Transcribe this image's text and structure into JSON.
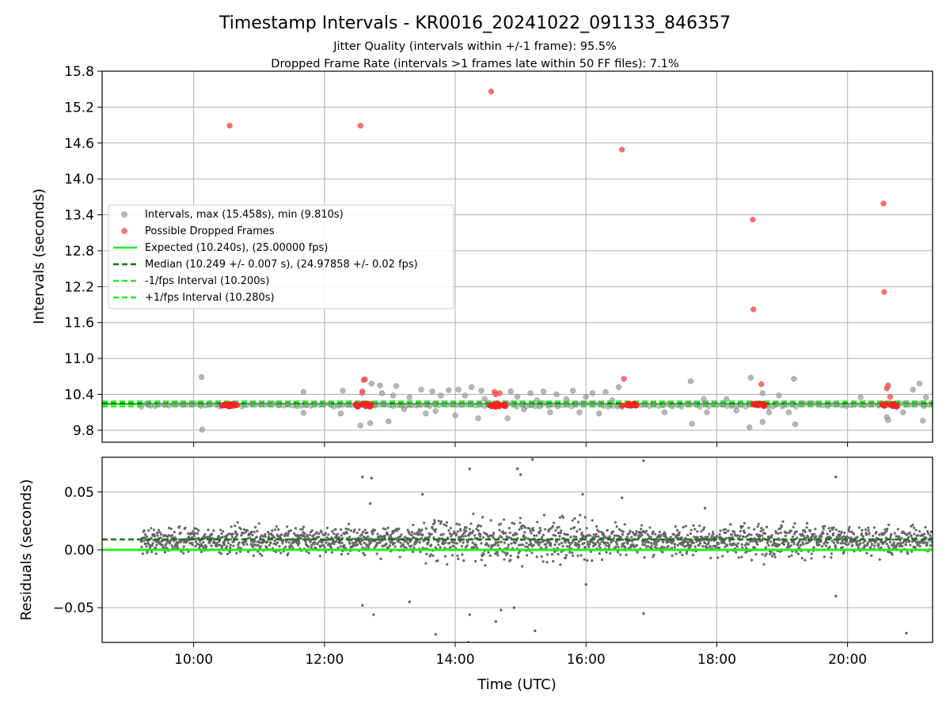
{
  "chart_data": [
    {
      "type": "scatter",
      "panel": "intervals",
      "title": "Timestamp Intervals - KR0016_20241022_091133_846357",
      "subtitle_lines": [
        "Jitter Quality (intervals within +/-1 frame): 95.5%",
        "Dropped Frame Rate (intervals >1 frames late within 50 FF files): 7.1%"
      ],
      "ylabel": "Intervals (seconds)",
      "xlim": [
        8.6,
        21.3
      ],
      "ylim": [
        9.6,
        15.8
      ],
      "yticks": [
        9.8,
        10.4,
        11.0,
        11.6,
        12.2,
        12.8,
        13.4,
        14.0,
        14.6,
        15.2,
        15.8
      ],
      "ytick_labels": [
        "9.8",
        "10.4",
        "11.0",
        "11.6",
        "12.2",
        "12.8",
        "13.4",
        "14.0",
        "14.6",
        "15.2",
        "15.8"
      ],
      "grid": true,
      "legend_position": "center-left",
      "legend": [
        {
          "label": "Intervals, max (15.458s), min (9.810s)",
          "style": "marker",
          "color": "#999999"
        },
        {
          "label": "Possible Dropped Frames",
          "style": "marker",
          "color": "#ff5555"
        },
        {
          "label": "Expected (10.240s), (25.00000 fps)",
          "style": "solid",
          "color": "#22ee22"
        },
        {
          "label": "Median (10.249 +/- 0.007 s), (24.97858 +/- 0.02 fps)",
          "style": "dashed",
          "color": "#117711"
        },
        {
          "label": "-1/fps Interval (10.200s)",
          "style": "dashed",
          "color": "#22ee22"
        },
        {
          "label": "+1/fps Interval (10.280s)",
          "style": "dashed",
          "color": "#22ee22"
        }
      ],
      "series": [
        {
          "name": "Intervals, max (15.458s), min (9.810s)",
          "color": "#999999",
          "x": [
            10.12,
            10.13,
            11.68,
            11.68,
            12.28,
            12.25,
            12.55,
            12.58,
            12.72,
            12.7,
            12.85,
            12.88,
            12.98,
            13.05,
            13.1,
            13.22,
            13.3,
            13.48,
            13.55,
            13.65,
            13.7,
            13.78,
            13.9,
            14.0,
            14.05,
            14.15,
            14.25,
            14.35,
            14.4,
            14.45,
            14.8,
            14.85,
            14.95,
            15.05,
            15.15,
            15.25,
            15.35,
            15.45,
            15.55,
            15.7,
            15.8,
            15.9,
            16.0,
            16.1,
            16.2,
            16.3,
            16.4,
            16.5,
            17.2,
            17.6,
            17.62,
            17.8,
            17.85,
            18.15,
            18.3,
            18.5,
            18.52,
            18.7,
            18.7,
            18.8,
            18.95,
            19.1,
            19.2,
            19.18,
            20.2,
            20.6,
            20.62,
            20.85,
            21.0,
            21.1,
            21.15,
            21.2
          ],
          "y": [
            10.69,
            9.81,
            10.44,
            10.09,
            10.46,
            10.08,
            9.88,
            10.42,
            10.58,
            9.92,
            10.55,
            10.42,
            9.95,
            10.38,
            10.54,
            10.15,
            10.35,
            10.48,
            10.08,
            10.45,
            10.12,
            10.38,
            10.47,
            10.05,
            10.48,
            10.38,
            10.52,
            10.0,
            10.46,
            10.32,
            10.0,
            10.45,
            10.36,
            10.15,
            10.42,
            10.3,
            10.45,
            10.1,
            10.4,
            10.32,
            10.46,
            10.1,
            10.36,
            10.42,
            10.08,
            10.44,
            10.3,
            10.52,
            10.1,
            10.62,
            9.91,
            10.32,
            10.1,
            10.32,
            10.13,
            9.85,
            10.68,
            9.94,
            10.42,
            10.1,
            10.38,
            10.1,
            9.9,
            10.66,
            10.35,
            10.02,
            9.97,
            10.1,
            10.48,
            10.58,
            9.96,
            10.35
          ]
        },
        {
          "name": "Possible Dropped Frames",
          "color": "#ff5555",
          "x": [
            10.55,
            12.55,
            12.6,
            12.58,
            12.62,
            14.55,
            14.6,
            14.62,
            14.68,
            16.55,
            16.58,
            18.55,
            18.56,
            18.68,
            20.55,
            20.56,
            20.6,
            20.62,
            20.65
          ],
          "y": [
            14.89,
            14.89,
            10.64,
            10.45,
            10.65,
            15.46,
            10.44,
            10.4,
            10.42,
            14.49,
            10.66,
            13.32,
            11.82,
            10.57,
            13.59,
            12.11,
            10.5,
            10.55,
            10.36
          ]
        }
      ],
      "dropped_frame_clusters_x": [
        10.55,
        12.6,
        14.65,
        16.65,
        18.65,
        20.65
      ],
      "reference_lines": [
        {
          "name": "Expected (10.240s), (25.00000 fps)",
          "y": 10.24,
          "style": "solid",
          "color": "#22ee22"
        },
        {
          "name": "Median (10.249 +/- 0.007 s), (24.97858 +/- 0.02 fps)",
          "y": 10.249,
          "style": "dashed",
          "color": "#117711"
        },
        {
          "name": "-1/fps Interval (10.200s)",
          "y": 10.2,
          "style": "dashed",
          "color": "#22ee22"
        },
        {
          "name": "+1/fps Interval (10.280s)",
          "y": 10.28,
          "style": "dashed",
          "color": "#22ee22"
        }
      ]
    },
    {
      "type": "scatter",
      "panel": "residuals",
      "xlabel": "Time (UTC)",
      "ylabel": "Residuals (seconds)",
      "xlim": [
        8.6,
        21.3
      ],
      "ylim": [
        -0.08,
        0.08
      ],
      "xticks": [
        10,
        12,
        14,
        16,
        18,
        20
      ],
      "xtick_labels": [
        "10:00",
        "12:00",
        "14:00",
        "16:00",
        "18:00",
        "20:00"
      ],
      "yticks": [
        -0.05,
        0.0,
        0.05
      ],
      "ytick_labels": [
        "−0.05",
        "0.00",
        "0.05"
      ],
      "grid": true,
      "series_color": "#666666",
      "x_start": 9.2,
      "x_end": 21.3,
      "typical_center": 0.008,
      "typical_spread": 0.01,
      "outliers": [
        {
          "x": 12.58,
          "y": 0.063
        },
        {
          "x": 12.72,
          "y": 0.062
        },
        {
          "x": 12.7,
          "y": 0.04
        },
        {
          "x": 13.5,
          "y": 0.048
        },
        {
          "x": 14.22,
          "y": 0.07
        },
        {
          "x": 14.95,
          "y": 0.07
        },
        {
          "x": 15.0,
          "y": 0.065
        },
        {
          "x": 15.18,
          "y": 0.078
        },
        {
          "x": 15.95,
          "y": 0.048
        },
        {
          "x": 16.55,
          "y": 0.045
        },
        {
          "x": 16.88,
          "y": 0.077
        },
        {
          "x": 17.82,
          "y": 0.036
        },
        {
          "x": 19.82,
          "y": 0.063
        },
        {
          "x": 12.58,
          "y": -0.048
        },
        {
          "x": 12.75,
          "y": -0.056
        },
        {
          "x": 13.3,
          "y": -0.045
        },
        {
          "x": 13.7,
          "y": -0.073
        },
        {
          "x": 14.22,
          "y": -0.056
        },
        {
          "x": 14.62,
          "y": -0.062
        },
        {
          "x": 14.7,
          "y": -0.052
        },
        {
          "x": 14.9,
          "y": -0.05
        },
        {
          "x": 15.22,
          "y": -0.07
        },
        {
          "x": 16.0,
          "y": -0.03
        },
        {
          "x": 16.88,
          "y": -0.055
        },
        {
          "x": 19.82,
          "y": -0.04
        },
        {
          "x": 20.9,
          "y": -0.072
        },
        {
          "x": 14.2,
          "y": -0.08
        }
      ],
      "reference_lines": [
        {
          "name": "Expected",
          "y": 0.0,
          "style": "solid",
          "color": "#22ee22"
        },
        {
          "name": "Median",
          "y": 0.009,
          "style": "dashed",
          "color": "#117711"
        }
      ]
    }
  ]
}
